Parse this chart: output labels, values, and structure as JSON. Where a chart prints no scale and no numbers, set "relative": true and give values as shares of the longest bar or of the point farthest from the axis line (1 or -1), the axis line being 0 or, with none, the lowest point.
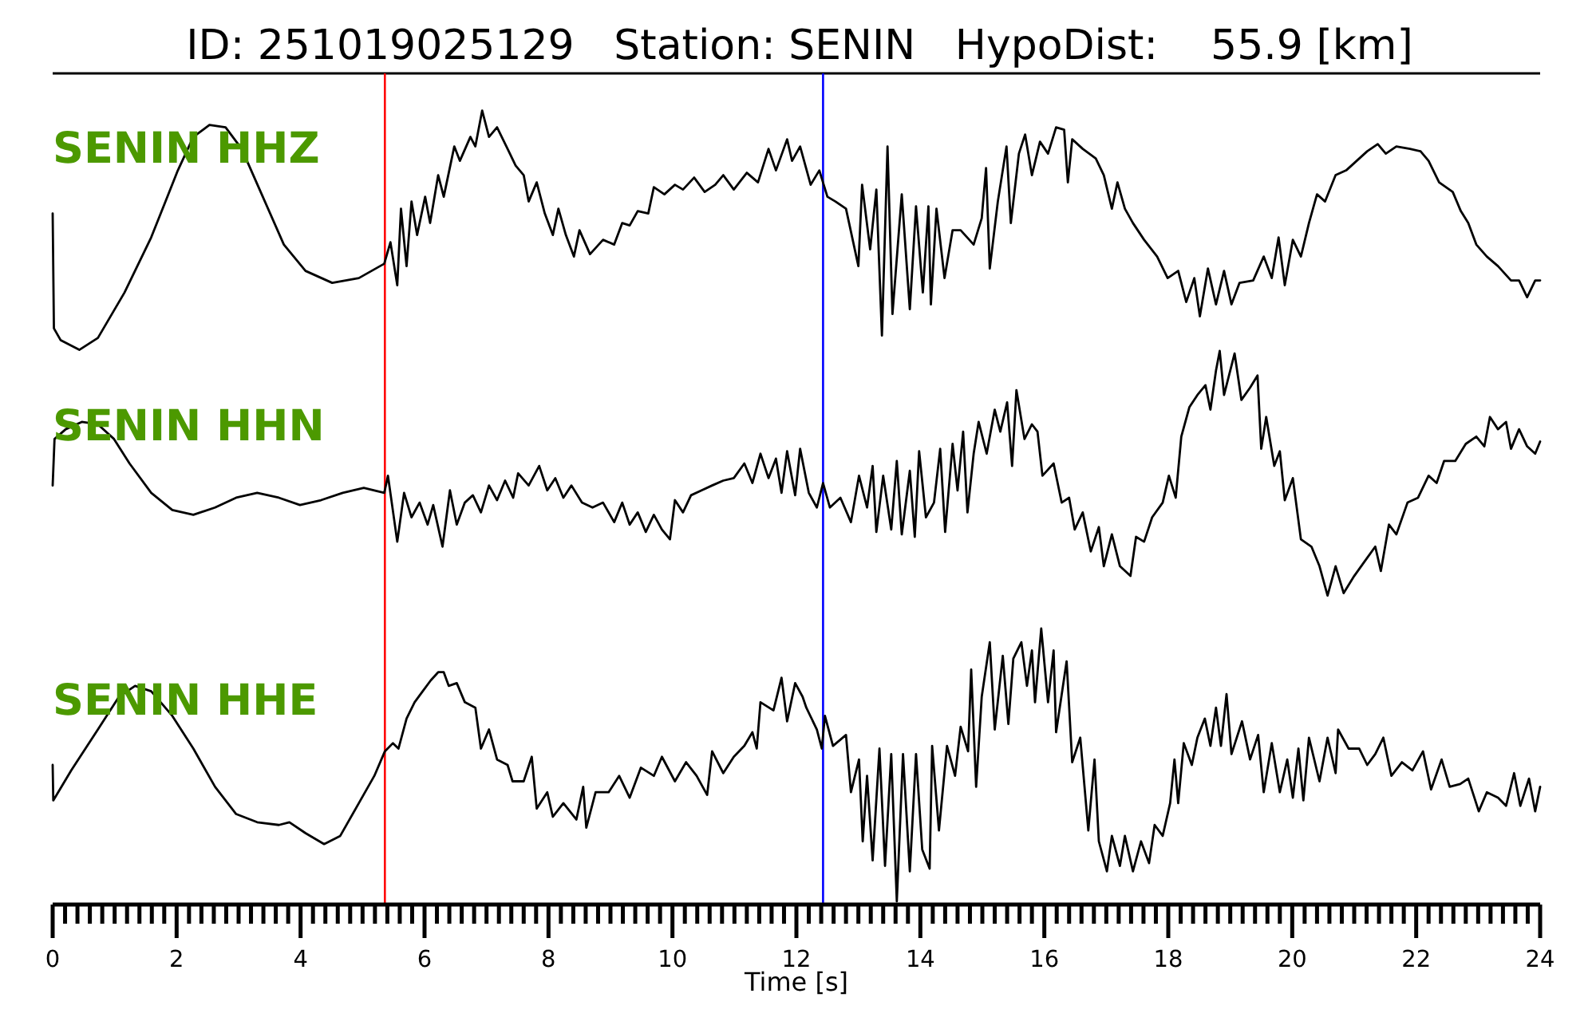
{
  "chart_data": [
    {
      "type": "line",
      "title": "ID: 251019025129   Station: SENIN   HypoDist:    55.9 [km]",
      "relative": true,
      "xlim": [
        0,
        24
      ],
      "tick_labels": false,
      "ref_lines": [
        {
          "axis": "x",
          "value": 5.36,
          "color": "#ff0000"
        },
        {
          "axis": "x",
          "value": 12.43,
          "color": "#0000ff"
        }
      ],
      "series": [
        {
          "name": "SENIN HHZ",
          "color": "#000000",
          "x": [
            0,
            0.02,
            0.13,
            0.43,
            0.73,
            1.16,
            1.59,
            2.02,
            2.27,
            2.53,
            2.79,
            3.05,
            3.39,
            3.73,
            4.08,
            4.51,
            4.94,
            5.35,
            5.45,
            5.56,
            5.62,
            5.71,
            5.79,
            5.88,
            6.01,
            6.09,
            6.22,
            6.31,
            6.48,
            6.57,
            6.74,
            6.82,
            6.93,
            7.04,
            7.17,
            7.34,
            7.47,
            7.6,
            7.68,
            7.81,
            7.94,
            8.07,
            8.16,
            8.28,
            8.41,
            8.5,
            8.67,
            8.88,
            9.06,
            9.19,
            9.31,
            9.44,
            9.61,
            9.7,
            9.87,
            10.04,
            10.17,
            10.35,
            10.52,
            10.69,
            10.82,
            10.99,
            11.2,
            11.38,
            11.55,
            11.67,
            11.85,
            11.93,
            12.06,
            12.23,
            12.37,
            12.5,
            12.63,
            12.8,
            13,
            13.06,
            13.19,
            13.29,
            13.38,
            13.47,
            13.55,
            13.7,
            13.83,
            13.93,
            14.04,
            14.13,
            14.17,
            14.26,
            14.39,
            14.52,
            14.65,
            14.86,
            14.99,
            15.06,
            15.12,
            15.25,
            15.39,
            15.46,
            15.59,
            15.69,
            15.8,
            15.93,
            16.06,
            16.19,
            16.32,
            16.38,
            16.45,
            16.62,
            16.83,
            16.96,
            17.09,
            17.18,
            17.3,
            17.43,
            17.61,
            17.82,
            17.99,
            18.16,
            18.29,
            18.42,
            18.51,
            18.64,
            18.77,
            18.9,
            19.02,
            19.15,
            19.37,
            19.54,
            19.67,
            19.78,
            19.88,
            20.01,
            20.14,
            20.27,
            20.4,
            20.53,
            20.7,
            20.87,
            21.04,
            21.21,
            21.38,
            21.51,
            21.68,
            21.9,
            22.07,
            22.2,
            22.37,
            22.59,
            22.72,
            22.84,
            22.97,
            23.14,
            23.32,
            23.53,
            23.66,
            23.79,
            23.92,
            24
          ],
          "values": [
            0.57,
            0.09,
            0.04,
            0,
            0.05,
            0.24,
            0.47,
            0.75,
            0.89,
            0.94,
            0.93,
            0.84,
            0.64,
            0.44,
            0.33,
            0.28,
            0.3,
            0.36,
            0.45,
            0.27,
            0.59,
            0.35,
            0.62,
            0.48,
            0.64,
            0.53,
            0.73,
            0.64,
            0.85,
            0.79,
            0.89,
            0.85,
            1,
            0.89,
            0.93,
            0.84,
            0.77,
            0.73,
            0.62,
            0.7,
            0.57,
            0.48,
            0.59,
            0.48,
            0.39,
            0.5,
            0.4,
            0.46,
            0.44,
            0.53,
            0.52,
            0.58,
            0.57,
            0.68,
            0.65,
            0.69,
            0.67,
            0.72,
            0.66,
            0.69,
            0.73,
            0.67,
            0.74,
            0.7,
            0.84,
            0.75,
            0.88,
            0.79,
            0.85,
            0.69,
            0.75,
            0.64,
            0.62,
            0.59,
            0.35,
            0.69,
            0.42,
            0.67,
            0.06,
            0.85,
            0.15,
            0.65,
            0.17,
            0.6,
            0.24,
            0.6,
            0.19,
            0.59,
            0.3,
            0.5,
            0.5,
            0.44,
            0.55,
            0.76,
            0.34,
            0.62,
            0.85,
            0.53,
            0.82,
            0.9,
            0.73,
            0.87,
            0.82,
            0.93,
            0.92,
            0.7,
            0.88,
            0.84,
            0.8,
            0.73,
            0.59,
            0.7,
            0.59,
            0.53,
            0.46,
            0.39,
            0.3,
            0.33,
            0.2,
            0.3,
            0.14,
            0.34,
            0.19,
            0.33,
            0.19,
            0.28,
            0.29,
            0.39,
            0.3,
            0.47,
            0.27,
            0.46,
            0.39,
            0.53,
            0.65,
            0.62,
            0.73,
            0.75,
            0.79,
            0.83,
            0.86,
            0.82,
            0.85,
            0.84,
            0.83,
            0.79,
            0.7,
            0.66,
            0.58,
            0.53,
            0.44,
            0.39,
            0.35,
            0.29,
            0.29,
            0.22,
            0.29,
            0.29
          ]
        }
      ]
    },
    {
      "type": "line",
      "relative": true,
      "xlim": [
        0,
        24
      ],
      "tick_labels": false,
      "ref_lines": [
        {
          "axis": "x",
          "value": 5.36,
          "color": "#ff0000"
        },
        {
          "axis": "x",
          "value": 12.43,
          "color": "#0000ff"
        }
      ],
      "series": [
        {
          "name": "SENIN HHN",
          "color": "#000000",
          "x": [
            0,
            0.03,
            0.21,
            0.47,
            0.73,
            0.99,
            1.24,
            1.59,
            1.93,
            2.27,
            2.62,
            2.96,
            3.3,
            3.65,
            3.99,
            4.33,
            4.68,
            5.02,
            5.35,
            5.41,
            5.56,
            5.67,
            5.79,
            5.92,
            6.05,
            6.14,
            6.29,
            6.41,
            6.52,
            6.65,
            6.78,
            6.91,
            7.04,
            7.17,
            7.3,
            7.43,
            7.51,
            7.68,
            7.85,
            7.98,
            8.11,
            8.24,
            8.37,
            8.54,
            8.71,
            8.88,
            9.06,
            9.19,
            9.31,
            9.44,
            9.57,
            9.7,
            9.83,
            9.96,
            10.04,
            10.17,
            10.3,
            10.47,
            10.64,
            10.82,
            10.99,
            11.16,
            11.29,
            11.42,
            11.55,
            11.67,
            11.76,
            11.85,
            11.98,
            12.06,
            12.2,
            12.33,
            12.43,
            12.54,
            12.71,
            12.88,
            13.01,
            13.14,
            13.23,
            13.29,
            13.4,
            13.53,
            13.62,
            13.7,
            13.83,
            13.91,
            13.98,
            14.09,
            14.22,
            14.32,
            14.4,
            14.52,
            14.6,
            14.69,
            14.76,
            14.86,
            14.94,
            15.07,
            15.2,
            15.29,
            15.4,
            15.48,
            15.55,
            15.68,
            15.8,
            15.89,
            15.97,
            16.15,
            16.28,
            16.4,
            16.49,
            16.62,
            16.75,
            16.88,
            16.96,
            17.09,
            17.22,
            17.39,
            17.48,
            17.61,
            17.74,
            17.91,
            18.01,
            18.12,
            18.21,
            18.34,
            18.47,
            18.6,
            18.68,
            18.77,
            18.83,
            18.9,
            19.07,
            19.18,
            19.32,
            19.44,
            19.5,
            19.58,
            19.71,
            19.8,
            19.88,
            20.01,
            20.14,
            20.31,
            20.44,
            20.57,
            20.7,
            20.83,
            21,
            21.17,
            21.34,
            21.43,
            21.56,
            21.68,
            21.86,
            22.03,
            22.2,
            22.33,
            22.45,
            22.63,
            22.8,
            22.97,
            23.1,
            23.19,
            23.32,
            23.45,
            23.53,
            23.66,
            23.79,
            23.92,
            24
          ],
          "values": [
            0.45,
            0.64,
            0.68,
            0.71,
            0.7,
            0.64,
            0.54,
            0.42,
            0.35,
            0.33,
            0.36,
            0.4,
            0.42,
            0.4,
            0.37,
            0.39,
            0.42,
            0.44,
            0.42,
            0.49,
            0.22,
            0.42,
            0.32,
            0.38,
            0.29,
            0.37,
            0.2,
            0.43,
            0.29,
            0.38,
            0.41,
            0.34,
            0.45,
            0.39,
            0.47,
            0.4,
            0.5,
            0.45,
            0.53,
            0.43,
            0.48,
            0.4,
            0.45,
            0.38,
            0.36,
            0.38,
            0.3,
            0.38,
            0.29,
            0.34,
            0.26,
            0.33,
            0.27,
            0.23,
            0.39,
            0.34,
            0.41,
            0.43,
            0.45,
            0.47,
            0.48,
            0.54,
            0.46,
            0.58,
            0.48,
            0.56,
            0.42,
            0.59,
            0.41,
            0.6,
            0.42,
            0.36,
            0.46,
            0.36,
            0.4,
            0.3,
            0.49,
            0.36,
            0.53,
            0.26,
            0.49,
            0.27,
            0.55,
            0.25,
            0.51,
            0.24,
            0.59,
            0.32,
            0.38,
            0.6,
            0.26,
            0.62,
            0.43,
            0.67,
            0.34,
            0.58,
            0.71,
            0.58,
            0.76,
            0.67,
            0.79,
            0.53,
            0.84,
            0.64,
            0.7,
            0.67,
            0.49,
            0.54,
            0.38,
            0.4,
            0.27,
            0.34,
            0.18,
            0.28,
            0.12,
            0.25,
            0.12,
            0.08,
            0.24,
            0.22,
            0.32,
            0.38,
            0.49,
            0.4,
            0.65,
            0.77,
            0.82,
            0.86,
            0.76,
            0.92,
            1,
            0.82,
            0.99,
            0.8,
            0.85,
            0.9,
            0.6,
            0.73,
            0.53,
            0.59,
            0.39,
            0.48,
            0.23,
            0.2,
            0.12,
            0,
            0.12,
            0.01,
            0.08,
            0.14,
            0.2,
            0.1,
            0.29,
            0.25,
            0.38,
            0.4,
            0.49,
            0.46,
            0.55,
            0.55,
            0.62,
            0.65,
            0.61,
            0.73,
            0.68,
            0.71,
            0.6,
            0.68,
            0.61,
            0.58,
            0.63
          ]
        }
      ]
    },
    {
      "type": "line",
      "relative": true,
      "xlim": [
        0,
        24
      ],
      "xlabel": "Time [s]",
      "xticks": [
        0,
        {
          "value": 0.2,
          "label": null
        },
        {
          "value": 0.4,
          "label": null
        },
        {
          "value": 0.6,
          "label": null
        },
        {
          "value": 0.8,
          "label": null
        },
        {
          "value": 1,
          "label": null
        },
        {
          "value": 1.2,
          "label": null
        },
        {
          "value": 1.4,
          "label": null
        },
        {
          "value": 1.6,
          "label": null
        },
        {
          "value": 1.8,
          "label": null
        },
        2,
        {
          "value": 2.2,
          "label": null
        },
        {
          "value": 2.4,
          "label": null
        },
        {
          "value": 2.6,
          "label": null
        },
        {
          "value": 2.8,
          "label": null
        },
        {
          "value": 3,
          "label": null
        },
        {
          "value": 3.2,
          "label": null
        },
        {
          "value": 3.4,
          "label": null
        },
        {
          "value": 3.6,
          "label": null
        },
        {
          "value": 3.8,
          "label": null
        },
        4,
        {
          "value": 4.2,
          "label": null
        },
        {
          "value": 4.4,
          "label": null
        },
        {
          "value": 4.6,
          "label": null
        },
        {
          "value": 4.8,
          "label": null
        },
        {
          "value": 5,
          "label": null
        },
        {
          "value": 5.2,
          "label": null
        },
        {
          "value": 5.4,
          "label": null
        },
        {
          "value": 5.6,
          "label": null
        },
        {
          "value": 5.8,
          "label": null
        },
        6,
        {
          "value": 6.2,
          "label": null
        },
        {
          "value": 6.4,
          "label": null
        },
        {
          "value": 6.6,
          "label": null
        },
        {
          "value": 6.8,
          "label": null
        },
        {
          "value": 7,
          "label": null
        },
        {
          "value": 7.2,
          "label": null
        },
        {
          "value": 7.4,
          "label": null
        },
        {
          "value": 7.6,
          "label": null
        },
        {
          "value": 7.8,
          "label": null
        },
        8,
        {
          "value": 8.2,
          "label": null
        },
        {
          "value": 8.4,
          "label": null
        },
        {
          "value": 8.6,
          "label": null
        },
        {
          "value": 8.8,
          "label": null
        },
        {
          "value": 9,
          "label": null
        },
        {
          "value": 9.2,
          "label": null
        },
        {
          "value": 9.4,
          "label": null
        },
        {
          "value": 9.6,
          "label": null
        },
        {
          "value": 9.8,
          "label": null
        },
        10,
        {
          "value": 10.2,
          "label": null
        },
        {
          "value": 10.4,
          "label": null
        },
        {
          "value": 10.6,
          "label": null
        },
        {
          "value": 10.8,
          "label": null
        },
        {
          "value": 11,
          "label": null
        },
        {
          "value": 11.2,
          "label": null
        },
        {
          "value": 11.4,
          "label": null
        },
        {
          "value": 11.6,
          "label": null
        },
        {
          "value": 11.8,
          "label": null
        },
        12,
        {
          "value": 12.2,
          "label": null
        },
        {
          "value": 12.4,
          "label": null
        },
        {
          "value": 12.6,
          "label": null
        },
        {
          "value": 12.8,
          "label": null
        },
        {
          "value": 13,
          "label": null
        },
        {
          "value": 13.2,
          "label": null
        },
        {
          "value": 13.4,
          "label": null
        },
        {
          "value": 13.6,
          "label": null
        },
        {
          "value": 13.8,
          "label": null
        },
        14,
        {
          "value": 14.2,
          "label": null
        },
        {
          "value": 14.4,
          "label": null
        },
        {
          "value": 14.6,
          "label": null
        },
        {
          "value": 14.8,
          "label": null
        },
        {
          "value": 15,
          "label": null
        },
        {
          "value": 15.2,
          "label": null
        },
        {
          "value": 15.4,
          "label": null
        },
        {
          "value": 15.6,
          "label": null
        },
        {
          "value": 15.8,
          "label": null
        },
        16,
        {
          "value": 16.2,
          "label": null
        },
        {
          "value": 16.4,
          "label": null
        },
        {
          "value": 16.6,
          "label": null
        },
        {
          "value": 16.8,
          "label": null
        },
        {
          "value": 17,
          "label": null
        },
        {
          "value": 17.2,
          "label": null
        },
        {
          "value": 17.4,
          "label": null
        },
        {
          "value": 17.6,
          "label": null
        },
        {
          "value": 17.8,
          "label": null
        },
        18,
        {
          "value": 18.2,
          "label": null
        },
        {
          "value": 18.4,
          "label": null
        },
        {
          "value": 18.6,
          "label": null
        },
        {
          "value": 18.8,
          "label": null
        },
        {
          "value": 19,
          "label": null
        },
        {
          "value": 19.2,
          "label": null
        },
        {
          "value": 19.4,
          "label": null
        },
        {
          "value": 19.6,
          "label": null
        },
        {
          "value": 19.8,
          "label": null
        },
        20,
        {
          "value": 20.2,
          "label": null
        },
        {
          "value": 20.4,
          "label": null
        },
        {
          "value": 20.6,
          "label": null
        },
        {
          "value": 20.8,
          "label": null
        },
        {
          "value": 21,
          "label": null
        },
        {
          "value": 21.2,
          "label": null
        },
        {
          "value": 21.4,
          "label": null
        },
        {
          "value": 21.6,
          "label": null
        },
        {
          "value": 21.8,
          "label": null
        },
        22,
        {
          "value": 22.2,
          "label": null
        },
        {
          "value": 22.4,
          "label": null
        },
        {
          "value": 22.6,
          "label": null
        },
        {
          "value": 22.8,
          "label": null
        },
        {
          "value": 23,
          "label": null
        },
        {
          "value": 23.2,
          "label": null
        },
        {
          "value": 23.4,
          "label": null
        },
        {
          "value": 23.6,
          "label": null
        },
        {
          "value": 23.8,
          "label": null
        },
        24
      ],
      "ref_lines": [
        {
          "axis": "x",
          "value": 5.36,
          "color": "#ff0000"
        },
        {
          "axis": "x",
          "value": 12.43,
          "color": "#0000ff"
        }
      ],
      "series": [
        {
          "name": "SENIN HHE",
          "color": "#000000",
          "x": [
            0,
            0.01,
            0.3,
            0.73,
            1.07,
            1.33,
            1.59,
            1.93,
            2.27,
            2.62,
            2.96,
            3.3,
            3.65,
            3.82,
            4.08,
            4.38,
            4.64,
            4.94,
            5.19,
            5.36,
            5.49,
            5.58,
            5.71,
            5.84,
            5.97,
            6.1,
            6.22,
            6.31,
            6.39,
            6.52,
            6.65,
            6.82,
            6.91,
            7.04,
            7.17,
            7.34,
            7.42,
            7.6,
            7.73,
            7.81,
            7.98,
            8.07,
            8.24,
            8.45,
            8.56,
            8.61,
            8.76,
            8.97,
            9.14,
            9.31,
            9.49,
            9.7,
            9.83,
            10.04,
            10.22,
            10.39,
            10.56,
            10.64,
            10.82,
            10.99,
            11.16,
            11.29,
            11.36,
            11.42,
            11.63,
            11.76,
            11.85,
            11.98,
            12.1,
            12.16,
            12.33,
            12.41,
            12.46,
            12.59,
            12.8,
            12.88,
            13.01,
            13.07,
            13.14,
            13.23,
            13.34,
            13.43,
            13.53,
            13.62,
            13.72,
            13.83,
            13.93,
            14.03,
            14.15,
            14.19,
            14.3,
            14.43,
            14.56,
            14.65,
            14.77,
            14.82,
            14.9,
            14.99,
            15.12,
            15.2,
            15.33,
            15.42,
            15.5,
            15.63,
            15.72,
            15.8,
            15.85,
            15.95,
            16.06,
            16.15,
            16.19,
            16.36,
            16.45,
            16.58,
            16.71,
            16.81,
            16.88,
            17.01,
            17.09,
            17.22,
            17.3,
            17.43,
            17.56,
            17.69,
            17.78,
            17.91,
            18.03,
            18.1,
            18.16,
            18.25,
            18.38,
            18.47,
            18.59,
            18.68,
            18.77,
            18.85,
            18.94,
            19.02,
            19.19,
            19.32,
            19.45,
            19.54,
            19.67,
            19.8,
            19.92,
            20.01,
            20.1,
            20.18,
            20.27,
            20.44,
            20.57,
            20.7,
            20.74,
            20.91,
            21.08,
            21.21,
            21.34,
            21.47,
            21.6,
            21.77,
            21.94,
            22.11,
            22.24,
            22.41,
            22.54,
            22.71,
            22.84,
            23.01,
            23.14,
            23.32,
            23.45,
            23.58,
            23.68,
            23.82,
            23.92,
            24
          ],
          "values": [
            0.5,
            0.37,
            0.48,
            0.63,
            0.75,
            0.79,
            0.77,
            0.68,
            0.56,
            0.42,
            0.32,
            0.29,
            0.28,
            0.29,
            0.25,
            0.21,
            0.24,
            0.36,
            0.46,
            0.55,
            0.58,
            0.56,
            0.67,
            0.73,
            0.77,
            0.81,
            0.84,
            0.84,
            0.79,
            0.8,
            0.73,
            0.71,
            0.56,
            0.63,
            0.52,
            0.5,
            0.44,
            0.44,
            0.53,
            0.34,
            0.4,
            0.31,
            0.36,
            0.3,
            0.42,
            0.27,
            0.4,
            0.4,
            0.46,
            0.38,
            0.49,
            0.46,
            0.53,
            0.44,
            0.51,
            0.46,
            0.39,
            0.55,
            0.47,
            0.53,
            0.57,
            0.62,
            0.56,
            0.73,
            0.7,
            0.82,
            0.66,
            0.8,
            0.75,
            0.71,
            0.63,
            0.56,
            0.68,
            0.57,
            0.61,
            0.4,
            0.52,
            0.22,
            0.46,
            0.15,
            0.56,
            0.13,
            0.54,
            0,
            0.54,
            0.11,
            0.54,
            0.19,
            0.12,
            0.57,
            0.26,
            0.57,
            0.46,
            0.64,
            0.55,
            0.85,
            0.42,
            0.75,
            0.95,
            0.63,
            0.9,
            0.65,
            0.89,
            0.95,
            0.79,
            0.92,
            0.73,
            1,
            0.73,
            0.92,
            0.62,
            0.88,
            0.51,
            0.6,
            0.26,
            0.52,
            0.22,
            0.11,
            0.24,
            0.13,
            0.24,
            0.11,
            0.22,
            0.14,
            0.28,
            0.24,
            0.36,
            0.52,
            0.36,
            0.58,
            0.5,
            0.6,
            0.67,
            0.57,
            0.71,
            0.57,
            0.76,
            0.54,
            0.66,
            0.52,
            0.61,
            0.4,
            0.58,
            0.4,
            0.52,
            0.38,
            0.56,
            0.37,
            0.6,
            0.44,
            0.6,
            0.47,
            0.63,
            0.56,
            0.56,
            0.5,
            0.54,
            0.6,
            0.46,
            0.51,
            0.48,
            0.55,
            0.41,
            0.52,
            0.42,
            0.43,
            0.45,
            0.33,
            0.4,
            0.38,
            0.35,
            0.47,
            0.35,
            0.45,
            0.33,
            0.42
          ]
        }
      ]
    }
  ]
}
